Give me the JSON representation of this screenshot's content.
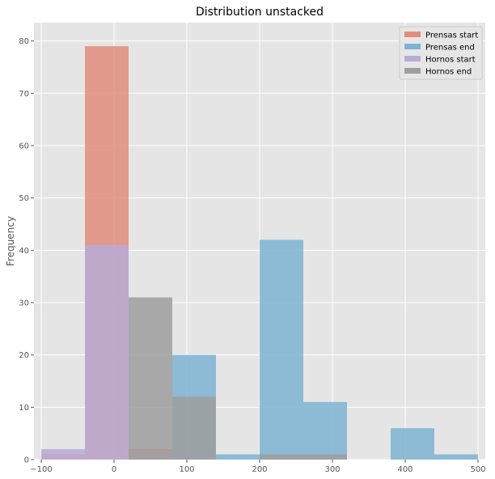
{
  "chart_data": {
    "type": "bar",
    "title": "Distribution unstacked",
    "xlabel": "",
    "ylabel": "Frequency",
    "xlim": [
      -110,
      510
    ],
    "ylim": [
      0,
      83.5
    ],
    "xticks": [
      -100,
      0,
      100,
      200,
      300,
      400,
      500
    ],
    "yticks": [
      0,
      10,
      20,
      30,
      40,
      50,
      60,
      70,
      80
    ],
    "grid": true,
    "background": "#e5e5e5",
    "grid_color": "#ffffff",
    "legend_position": "top-right",
    "bin_edges": [
      -100,
      -40,
      20,
      80,
      140,
      200,
      260,
      320,
      380,
      440,
      500
    ],
    "series": [
      {
        "name": "Prensas start",
        "color": "#e08d7b",
        "values": [
          1,
          79,
          2,
          0,
          0,
          0,
          0,
          0,
          0,
          0
        ]
      },
      {
        "name": "Prensas end",
        "color": "#7eb3d2",
        "values": [
          0,
          0,
          0,
          20,
          1,
          42,
          11,
          0,
          6,
          1
        ]
      },
      {
        "name": "Hornos start",
        "color": "#b9abd6",
        "values": [
          2,
          41,
          1,
          0,
          0,
          0,
          0,
          0,
          0,
          0
        ]
      },
      {
        "name": "Hornos end",
        "color": "#9e9e9e",
        "values": [
          0,
          0,
          31,
          12,
          0,
          1,
          1,
          0,
          0,
          0
        ]
      }
    ]
  }
}
